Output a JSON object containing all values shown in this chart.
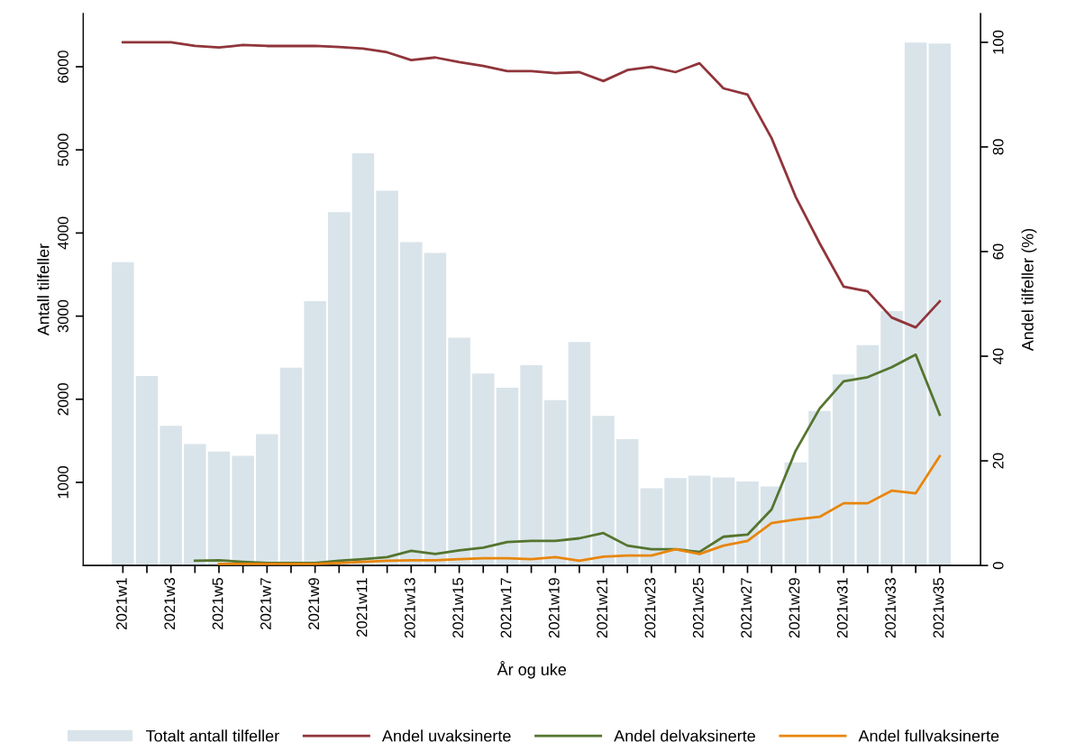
{
  "chart_data": {
    "type": "bar",
    "xlabel": "År og uke",
    "ylabel": "Antall tilfeller",
    "y2label": "Andel tilfeller (%)",
    "categories": [
      "2021w1",
      null,
      "2021w3",
      null,
      "2021w5",
      null,
      "2021w7",
      null,
      "2021w9",
      null,
      "2021w11",
      null,
      "2021w13",
      null,
      "2021w15",
      null,
      "2021w17",
      null,
      "2021w19",
      null,
      "2021w21",
      null,
      "2021w23",
      null,
      "2021w25",
      null,
      "2021w27",
      null,
      "2021w29",
      null,
      "2021w31",
      null,
      "2021w33",
      null,
      "2021w35"
    ],
    "ylim": [
      0,
      6640
    ],
    "yticks": [
      1000,
      2000,
      3000,
      4000,
      5000,
      6000
    ],
    "y2lim": [
      0,
      105.5
    ],
    "y2ticks": [
      0,
      20,
      40,
      60,
      80,
      100
    ],
    "grid": false,
    "legend": "bottom",
    "series": [
      {
        "name": "Totalt antall tilfeller",
        "color": "#d9e4ea",
        "values": [
          3650,
          2280,
          1680,
          1460,
          1370,
          1320,
          1580,
          2380,
          3180,
          4250,
          4960,
          4510,
          3890,
          3760,
          2740,
          2310,
          2140,
          2410,
          1990,
          2690,
          1800,
          1520,
          930,
          1050,
          1080,
          1060,
          1010,
          950,
          1240,
          1860,
          2300,
          2650,
          3060,
          6290,
          6280
        ]
      },
      {
        "name": "Andel uvaksinerte",
        "type": "line",
        "axis": "y2",
        "color": "#90353b",
        "values": [
          100,
          100,
          100,
          99.3,
          99,
          99.5,
          99.3,
          99.3,
          99.3,
          99.1,
          98.8,
          98.1,
          96.6,
          97.1,
          96.2,
          95.5,
          94.5,
          94.5,
          94.1,
          94.3,
          92.6,
          94.7,
          95.3,
          94.3,
          96,
          91.2,
          90,
          81.7,
          70.5,
          61.6,
          53.3,
          52.4,
          47.4,
          45.5,
          50.5
        ]
      },
      {
        "name": "Andel delvaksinerte",
        "type": "line",
        "axis": "y2",
        "color": "#55752f",
        "values": [
          null,
          null,
          null,
          0.9,
          1,
          0.7,
          0.5,
          0.5,
          0.5,
          0.9,
          1.2,
          1.6,
          2.8,
          2.2,
          2.9,
          3.4,
          4.5,
          4.7,
          4.7,
          5.2,
          6.2,
          3.8,
          3.1,
          3.1,
          2.6,
          5.5,
          5.9,
          10.7,
          21.9,
          30,
          35.2,
          36,
          37.9,
          40.3,
          28.8
        ]
      },
      {
        "name": "Andel fullvaksinerte",
        "type": "line",
        "axis": "y2",
        "color": "#e8860c",
        "values": [
          null,
          null,
          null,
          null,
          0.3,
          0.3,
          0.3,
          0.3,
          0.3,
          0.5,
          0.7,
          0.9,
          1,
          1,
          1.2,
          1.4,
          1.4,
          1.2,
          1.6,
          0.9,
          1.7,
          1.9,
          1.9,
          3.1,
          2.2,
          3.8,
          4.7,
          8.1,
          8.8,
          9.3,
          11.9,
          11.9,
          14.3,
          13.8,
          20.9
        ]
      }
    ]
  }
}
